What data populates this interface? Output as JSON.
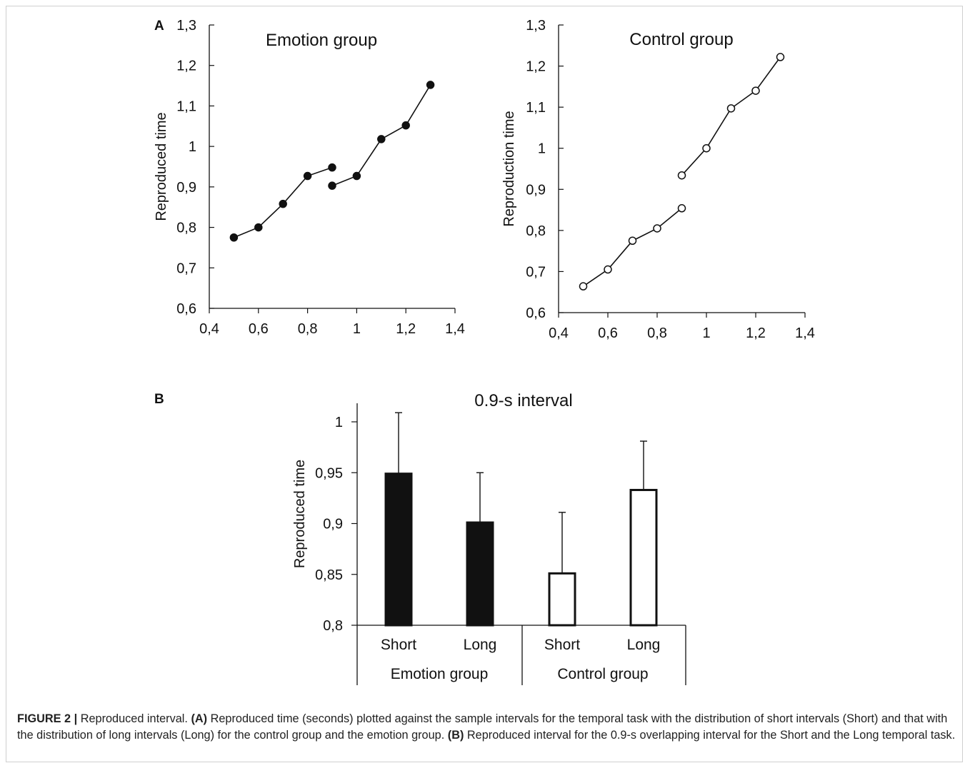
{
  "panels": {
    "a_label": "A",
    "b_label": "B"
  },
  "chart_data": [
    {
      "type": "scatter",
      "title": "Emotion group",
      "xlabel": "",
      "ylabel": "Reproduced time",
      "xlim": [
        0.4,
        1.4
      ],
      "ylim": [
        0.6,
        1.3
      ],
      "x_ticks": [
        "0,4",
        "0,6",
        "0,8",
        "1",
        "1,2",
        "1,4"
      ],
      "y_ticks": [
        "0,6",
        "0,7",
        "0,8",
        "0,9",
        "1",
        "1,1",
        "1,2",
        "1,3"
      ],
      "marker": "filled-circle",
      "series": [
        {
          "x": [
            0.5,
            0.6,
            0.7,
            0.8,
            0.9
          ],
          "y": [
            0.775,
            0.8,
            0.858,
            0.927,
            0.948
          ]
        },
        {
          "x": [
            0.9,
            1.0,
            1.1,
            1.2,
            1.3
          ],
          "y": [
            0.903,
            0.927,
            1.018,
            1.052,
            1.152
          ]
        }
      ]
    },
    {
      "type": "scatter",
      "title": "Control group",
      "xlabel": "",
      "ylabel": "Reproduction time",
      "xlim": [
        0.4,
        1.4
      ],
      "ylim": [
        0.6,
        1.3
      ],
      "x_ticks": [
        "0,4",
        "0,6",
        "0,8",
        "1",
        "1,2",
        "1,4"
      ],
      "y_ticks": [
        "0,6",
        "0,7",
        "0,8",
        "0,9",
        "1",
        "1,1",
        "1,2",
        "1,3"
      ],
      "marker": "open-circle",
      "series": [
        {
          "x": [
            0.5,
            0.6,
            0.7,
            0.8,
            0.9
          ],
          "y": [
            0.664,
            0.705,
            0.775,
            0.805,
            0.854
          ]
        },
        {
          "x": [
            0.9,
            1.0,
            1.1,
            1.2,
            1.3
          ],
          "y": [
            0.934,
            1.0,
            1.097,
            1.14,
            1.222
          ]
        }
      ]
    },
    {
      "type": "bar",
      "title": "0.9-s interval",
      "xlabel": "",
      "ylabel": "Reproduced time",
      "ylim": [
        0.8,
        1.0
      ],
      "y_ticks": [
        "0,8",
        "0,85",
        "0,9",
        "0,95",
        "1"
      ],
      "categories": [
        "Short",
        "Long",
        "Short",
        "Long"
      ],
      "groups": [
        "Emotion group",
        "Control group"
      ],
      "values": [
        0.949,
        0.901,
        0.851,
        0.933
      ],
      "errors": [
        0.06,
        0.049,
        0.06,
        0.048
      ],
      "colors": [
        "#111111",
        "#111111",
        "#ffffff",
        "#ffffff"
      ]
    }
  ],
  "caption": {
    "figure_label": "FIGURE 2 |",
    "intro": " Reproduced interval. ",
    "a_ref": "(A)",
    "a_text": " Reproduced time (seconds) plotted against the sample intervals for the temporal task with the distribution of short intervals (Short) and that with the distribution of long intervals (Long) for the control group and the emotion group. ",
    "b_ref": "(B)",
    "b_text": " Reproduced interval for the 0.9-s overlapping interval for the Short and the Long temporal task."
  }
}
